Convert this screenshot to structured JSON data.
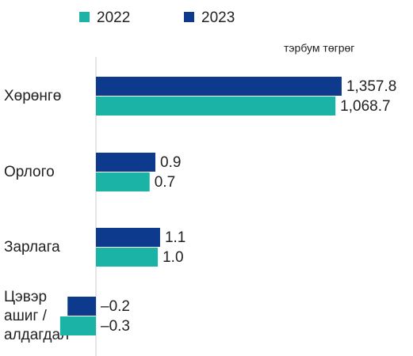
{
  "chart_data": {
    "type": "hbar",
    "subtitle": "тэрбум төгрөг",
    "categories": [
      "Хөрөнгө",
      "Орлого",
      "Зарлага",
      "Цэвэр\nашиг /\nалдагдал"
    ],
    "series": [
      {
        "name": "2022",
        "color": "#1ab3a6",
        "values": [
          1068.7,
          0.7,
          1.0,
          -0.3
        ],
        "value_labels": [
          "1,068.7",
          "0.7",
          "1.0",
          "–0.3"
        ]
      },
      {
        "name": "2023",
        "color": "#0d3a8c",
        "values": [
          1357.8,
          0.9,
          1.1,
          -0.2
        ],
        "value_labels": [
          "1,357.8",
          "0.9",
          "1.1",
          "–0.2"
        ]
      }
    ]
  }
}
